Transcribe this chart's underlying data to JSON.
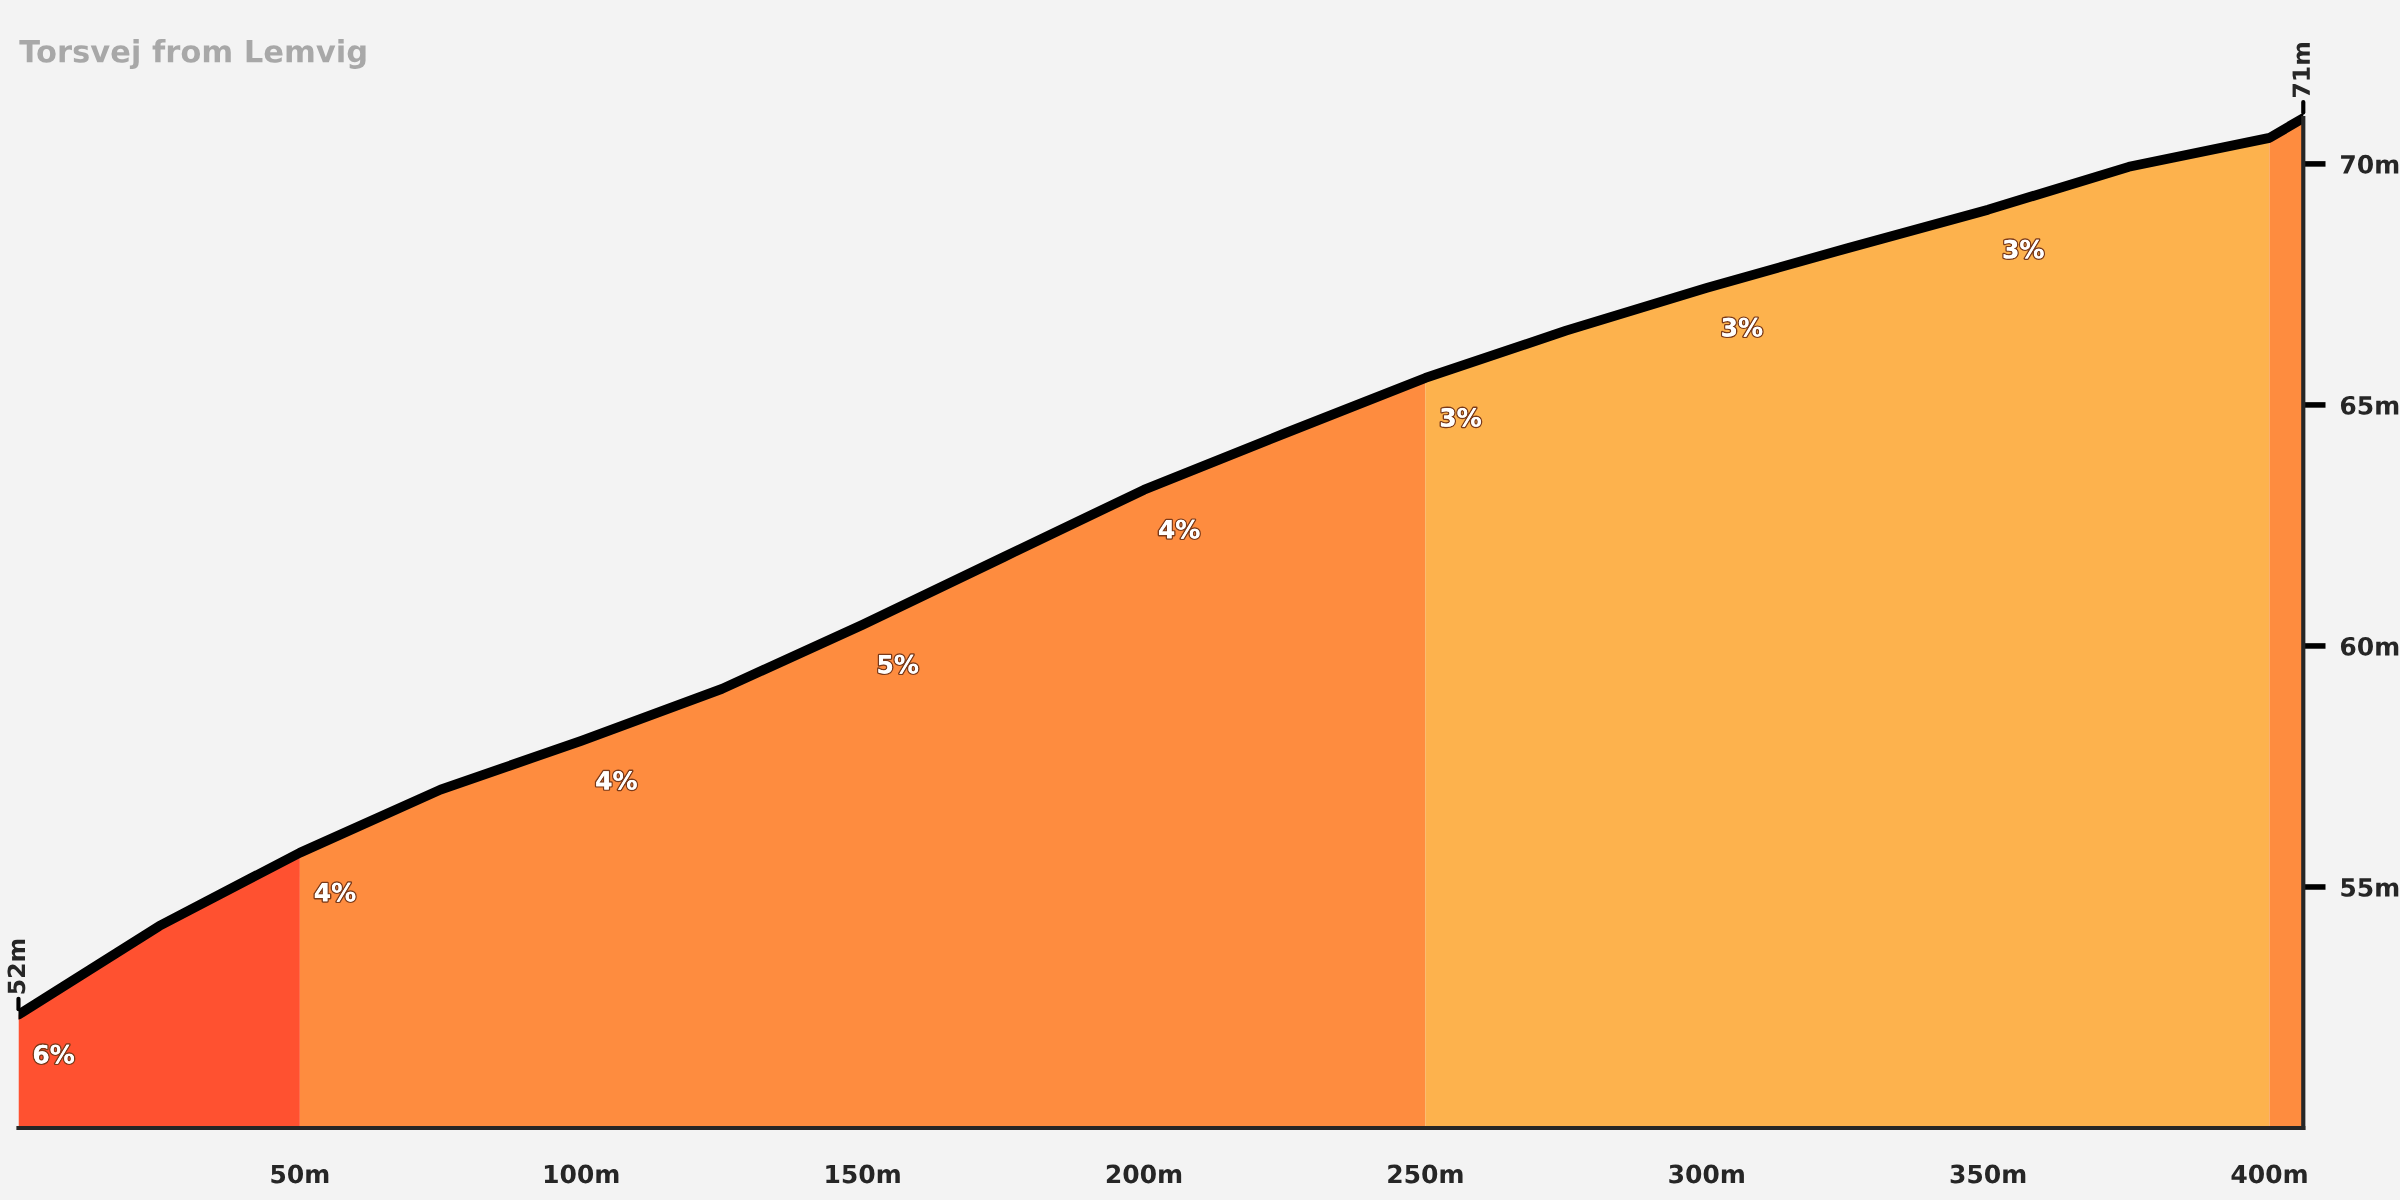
{
  "chart_data": {
    "type": "area",
    "title": "Torsvej from Lemvig",
    "series": [
      {
        "color": "#ff5130",
        "x": [
          0,
          25,
          50
        ],
        "values": [
          52.35,
          54.19,
          55.71
        ]
      },
      {
        "color": "#fe8c3f",
        "x": [
          50,
          75,
          100,
          125,
          150,
          175,
          200,
          225,
          250
        ],
        "values": [
          55.71,
          57.02,
          58.03,
          59.11,
          60.44,
          61.84,
          63.24,
          64.41,
          65.56
        ]
      },
      {
        "color": "#fdb24d",
        "x": [
          250,
          275,
          300,
          325,
          350,
          375,
          400
        ],
        "values": [
          65.56,
          66.54,
          67.43,
          68.25,
          69.05,
          69.94,
          70.54
        ]
      },
      {
        "color": "#fe8c3f",
        "x": [
          400,
          406
        ],
        "values": [
          70.54,
          70.95
        ]
      },
      {
        "type": "line",
        "color": "#000000",
        "x": [
          0,
          25,
          50,
          75,
          100,
          125,
          150,
          175,
          200,
          225,
          250,
          275,
          300,
          325,
          350,
          375,
          400,
          406
        ],
        "values": [
          52.35,
          54.19,
          55.71,
          57.02,
          58.03,
          59.11,
          60.44,
          61.84,
          63.24,
          64.41,
          65.56,
          66.54,
          67.43,
          68.25,
          69.05,
          69.94,
          70.54,
          70.95
        ]
      }
    ],
    "xlim": [
      0,
      406
    ],
    "ylim": [
      50,
      73.4
    ],
    "xticks": [
      {
        "value": 50,
        "label": "50m"
      },
      {
        "value": 100,
        "label": "100m"
      },
      {
        "value": 150,
        "label": "150m"
      },
      {
        "value": 200,
        "label": "200m"
      },
      {
        "value": 250,
        "label": "250m"
      },
      {
        "value": 300,
        "label": "300m"
      },
      {
        "value": 350,
        "label": "350m"
      },
      {
        "value": 400,
        "label": "400m"
      },
      {
        "value": 406,
        "label": null
      }
    ],
    "yticks": [
      {
        "value": 55,
        "label": "55m"
      },
      {
        "value": 60,
        "label": "60m"
      },
      {
        "value": 65,
        "label": "65m"
      },
      {
        "value": 70,
        "label": "70m"
      }
    ],
    "grid": false,
    "legend": false,
    "annotations": [
      {
        "text": "52m",
        "x": 0,
        "y": 52.35
      },
      {
        "text": "71m",
        "x": 406,
        "y": 70.95
      },
      "6%",
      "4%",
      "4%",
      "5%",
      "4%",
      "3%",
      "3%",
      "3%"
    ]
  }
}
